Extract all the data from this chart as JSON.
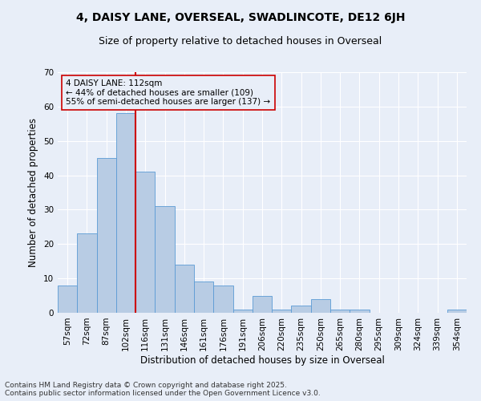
{
  "title": "4, DAISY LANE, OVERSEAL, SWADLINCOTE, DE12 6JH",
  "subtitle": "Size of property relative to detached houses in Overseal",
  "xlabel": "Distribution of detached houses by size in Overseal",
  "ylabel": "Number of detached properties",
  "categories": [
    "57sqm",
    "72sqm",
    "87sqm",
    "102sqm",
    "116sqm",
    "131sqm",
    "146sqm",
    "161sqm",
    "176sqm",
    "191sqm",
    "206sqm",
    "220sqm",
    "235sqm",
    "250sqm",
    "265sqm",
    "280sqm",
    "295sqm",
    "309sqm",
    "324sqm",
    "339sqm",
    "354sqm"
  ],
  "values": [
    8,
    23,
    45,
    58,
    41,
    31,
    14,
    9,
    8,
    1,
    5,
    1,
    2,
    4,
    1,
    1,
    0,
    0,
    0,
    0,
    1
  ],
  "bar_color": "#b8cce4",
  "bar_edge_color": "#5b9bd5",
  "vline_color": "#cc0000",
  "annotation_title": "4 DAISY LANE: 112sqm",
  "annotation_line2": "← 44% of detached houses are smaller (109)",
  "annotation_line3": "55% of semi-detached houses are larger (137) →",
  "annotation_box_color": "#cc0000",
  "ylim": [
    0,
    70
  ],
  "yticks": [
    0,
    10,
    20,
    30,
    40,
    50,
    60,
    70
  ],
  "footer_line1": "Contains HM Land Registry data © Crown copyright and database right 2025.",
  "footer_line2": "Contains public sector information licensed under the Open Government Licence v3.0.",
  "background_color": "#e8eef8",
  "grid_color": "#ffffff",
  "title_fontsize": 10,
  "subtitle_fontsize": 9,
  "axis_label_fontsize": 8.5,
  "tick_fontsize": 7.5,
  "annotation_fontsize": 7.5,
  "footer_fontsize": 6.5
}
